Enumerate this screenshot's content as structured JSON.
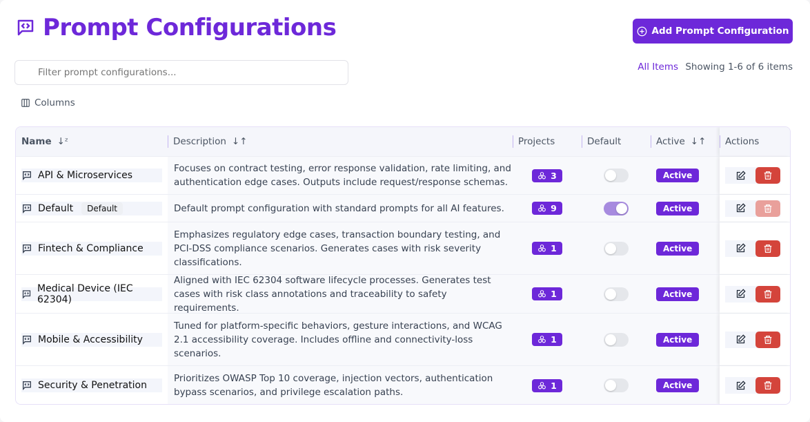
{
  "header": {
    "title": "Prompt Configurations",
    "add_button": "Add Prompt Configuration"
  },
  "filter": {
    "placeholder": "Filter prompt configurations..."
  },
  "summary": {
    "all_items": "All Items",
    "showing": "Showing 1-6 of 6 items"
  },
  "columns_button": "Columns",
  "table": {
    "headers": [
      "Name",
      "Description",
      "Projects",
      "Default",
      "Active",
      "Actions"
    ],
    "rows": [
      {
        "name": "API & Microservices",
        "tag": "",
        "description": "Focuses on contract testing, error response validation, rate limiting, and authentication edge cases. Outputs include request/response schemas.",
        "projects": "3",
        "default": false,
        "active": "Active",
        "delete_disabled": false
      },
      {
        "name": "Default",
        "tag": "Default",
        "description": "Default prompt configuration with standard prompts for all AI features.",
        "projects": "9",
        "default": true,
        "active": "Active",
        "delete_disabled": true
      },
      {
        "name": "Fintech & Compliance",
        "tag": "",
        "description": "Emphasizes regulatory edge cases, transaction boundary testing, and PCI-DSS compliance scenarios. Generates cases with risk severity classifications.",
        "projects": "1",
        "default": false,
        "active": "Active",
        "delete_disabled": false
      },
      {
        "name": "Medical Device (IEC 62304)",
        "tag": "",
        "description": "Aligned with IEC 62304 software lifecycle processes. Generates test cases with risk class annotations and traceability to safety requirements.",
        "projects": "1",
        "default": false,
        "active": "Active",
        "delete_disabled": false
      },
      {
        "name": "Mobile & Accessibility",
        "tag": "",
        "description": "Tuned for platform-specific behaviors, gesture interactions, and WCAG 2.1 accessibility coverage. Includes offline and connectivity-loss scenarios.",
        "projects": "1",
        "default": false,
        "active": "Active",
        "delete_disabled": false
      },
      {
        "name": "Security & Penetration",
        "tag": "",
        "description": "Prioritizes OWASP Top 10 coverage, injection vectors, authentication bypass scenarios, and privilege escalation paths.",
        "projects": "1",
        "default": false,
        "active": "Active",
        "delete_disabled": false
      }
    ]
  },
  "colors": {
    "accent": "#6d28d9",
    "danger": "#d4443b"
  }
}
